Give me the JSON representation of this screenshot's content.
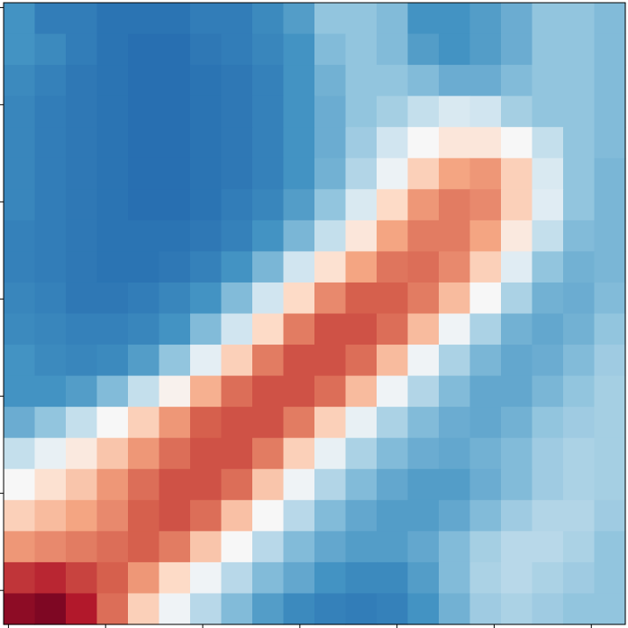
{
  "chart_data": {
    "type": "heatmap",
    "xlim": [
      -0.5,
      63.5
    ],
    "ylim": [
      63.5,
      -0.5
    ],
    "xticks": [
      0,
      10,
      20,
      30,
      40,
      50,
      60
    ],
    "yticks": [
      0,
      10,
      20,
      30,
      40,
      50,
      60
    ],
    "clim": [
      0,
      1
    ],
    "cmap": [
      "#053061",
      "#2166ac",
      "#4393c3",
      "#92c5de",
      "#d1e5f0",
      "#f7f7f7",
      "#fddbc7",
      "#f4a582",
      "#d6604d",
      "#b2182b",
      "#67001f"
    ],
    "z": [
      [
        0.2,
        0.15,
        0.15,
        0.13,
        0.13,
        0.13,
        0.15,
        0.15,
        0.18,
        0.22,
        0.3,
        0.3,
        0.28,
        0.2,
        0.2,
        0.22,
        0.25,
        0.3,
        0.3,
        0.28
      ],
      [
        0.2,
        0.18,
        0.15,
        0.13,
        0.12,
        0.12,
        0.14,
        0.15,
        0.17,
        0.2,
        0.28,
        0.3,
        0.28,
        0.22,
        0.2,
        0.22,
        0.25,
        0.3,
        0.3,
        0.28
      ],
      [
        0.18,
        0.16,
        0.14,
        0.13,
        0.12,
        0.12,
        0.13,
        0.14,
        0.16,
        0.2,
        0.26,
        0.3,
        0.3,
        0.28,
        0.25,
        0.25,
        0.28,
        0.3,
        0.3,
        0.28
      ],
      [
        0.17,
        0.15,
        0.14,
        0.13,
        0.12,
        0.12,
        0.13,
        0.14,
        0.16,
        0.2,
        0.25,
        0.3,
        0.33,
        0.38,
        0.42,
        0.4,
        0.33,
        0.3,
        0.3,
        0.28
      ],
      [
        0.17,
        0.15,
        0.14,
        0.13,
        0.12,
        0.12,
        0.13,
        0.14,
        0.16,
        0.2,
        0.25,
        0.32,
        0.4,
        0.5,
        0.56,
        0.56,
        0.5,
        0.38,
        0.3,
        0.28
      ],
      [
        0.17,
        0.15,
        0.14,
        0.13,
        0.12,
        0.12,
        0.13,
        0.14,
        0.16,
        0.2,
        0.26,
        0.35,
        0.47,
        0.62,
        0.7,
        0.72,
        0.62,
        0.42,
        0.3,
        0.27
      ],
      [
        0.17,
        0.15,
        0.14,
        0.13,
        0.12,
        0.12,
        0.13,
        0.15,
        0.17,
        0.22,
        0.3,
        0.42,
        0.6,
        0.72,
        0.76,
        0.74,
        0.62,
        0.44,
        0.3,
        0.27
      ],
      [
        0.16,
        0.15,
        0.14,
        0.13,
        0.13,
        0.13,
        0.14,
        0.16,
        0.2,
        0.27,
        0.38,
        0.56,
        0.7,
        0.76,
        0.76,
        0.7,
        0.55,
        0.38,
        0.28,
        0.27
      ],
      [
        0.16,
        0.15,
        0.14,
        0.13,
        0.13,
        0.14,
        0.16,
        0.2,
        0.27,
        0.4,
        0.58,
        0.7,
        0.77,
        0.78,
        0.74,
        0.62,
        0.44,
        0.3,
        0.26,
        0.27
      ],
      [
        0.17,
        0.16,
        0.14,
        0.14,
        0.15,
        0.17,
        0.2,
        0.28,
        0.4,
        0.6,
        0.74,
        0.8,
        0.8,
        0.76,
        0.66,
        0.5,
        0.34,
        0.26,
        0.25,
        0.28
      ],
      [
        0.18,
        0.17,
        0.16,
        0.16,
        0.17,
        0.2,
        0.28,
        0.4,
        0.6,
        0.76,
        0.82,
        0.82,
        0.78,
        0.66,
        0.48,
        0.34,
        0.26,
        0.24,
        0.26,
        0.3
      ],
      [
        0.2,
        0.18,
        0.17,
        0.18,
        0.22,
        0.3,
        0.45,
        0.62,
        0.76,
        0.82,
        0.82,
        0.78,
        0.66,
        0.48,
        0.34,
        0.27,
        0.24,
        0.25,
        0.28,
        0.32
      ],
      [
        0.2,
        0.2,
        0.22,
        0.28,
        0.38,
        0.52,
        0.68,
        0.78,
        0.82,
        0.82,
        0.78,
        0.66,
        0.48,
        0.35,
        0.28,
        0.24,
        0.24,
        0.27,
        0.3,
        0.33
      ],
      [
        0.25,
        0.3,
        0.38,
        0.5,
        0.62,
        0.72,
        0.8,
        0.82,
        0.82,
        0.76,
        0.62,
        0.46,
        0.34,
        0.28,
        0.25,
        0.24,
        0.26,
        0.3,
        0.32,
        0.33
      ],
      [
        0.38,
        0.46,
        0.55,
        0.64,
        0.72,
        0.78,
        0.82,
        0.82,
        0.76,
        0.62,
        0.46,
        0.34,
        0.28,
        0.25,
        0.24,
        0.26,
        0.28,
        0.32,
        0.34,
        0.33
      ],
      [
        0.5,
        0.58,
        0.64,
        0.72,
        0.78,
        0.82,
        0.82,
        0.78,
        0.64,
        0.48,
        0.35,
        0.28,
        0.24,
        0.22,
        0.22,
        0.25,
        0.28,
        0.32,
        0.34,
        0.33
      ],
      [
        0.62,
        0.66,
        0.7,
        0.74,
        0.8,
        0.82,
        0.78,
        0.65,
        0.5,
        0.36,
        0.28,
        0.24,
        0.22,
        0.22,
        0.24,
        0.28,
        0.32,
        0.35,
        0.35,
        0.32
      ],
      [
        0.72,
        0.74,
        0.76,
        0.78,
        0.8,
        0.76,
        0.64,
        0.5,
        0.36,
        0.28,
        0.24,
        0.22,
        0.22,
        0.24,
        0.28,
        0.33,
        0.36,
        0.36,
        0.34,
        0.3
      ],
      [
        0.86,
        0.88,
        0.84,
        0.8,
        0.72,
        0.6,
        0.48,
        0.36,
        0.28,
        0.24,
        0.2,
        0.18,
        0.18,
        0.22,
        0.28,
        0.34,
        0.36,
        0.34,
        0.32,
        0.3
      ],
      [
        0.95,
        0.97,
        0.9,
        0.78,
        0.62,
        0.48,
        0.36,
        0.28,
        0.22,
        0.18,
        0.16,
        0.15,
        0.16,
        0.2,
        0.26,
        0.32,
        0.34,
        0.32,
        0.3,
        0.3
      ]
    ]
  }
}
